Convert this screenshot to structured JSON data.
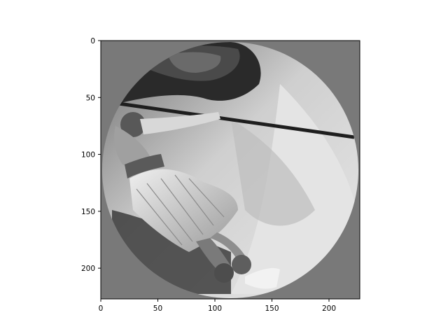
{
  "figure": {
    "background": "#ffffff",
    "panel_fill": "#797979"
  },
  "image": {
    "description_kind": "grayscale-photo",
    "mask": "circle",
    "x_range": [
      0,
      227
    ],
    "y_range": [
      0,
      227
    ],
    "y_inverted": true
  },
  "axes": {
    "x_ticks": [
      {
        "value": 0,
        "label": "0"
      },
      {
        "value": 50,
        "label": "50"
      },
      {
        "value": 100,
        "label": "100"
      },
      {
        "value": 150,
        "label": "150"
      },
      {
        "value": 200,
        "label": "200"
      }
    ],
    "y_ticks": [
      {
        "value": 0,
        "label": "0"
      },
      {
        "value": 50,
        "label": "50"
      },
      {
        "value": 100,
        "label": "100"
      },
      {
        "value": 150,
        "label": "150"
      },
      {
        "value": 200,
        "label": "200"
      }
    ]
  }
}
